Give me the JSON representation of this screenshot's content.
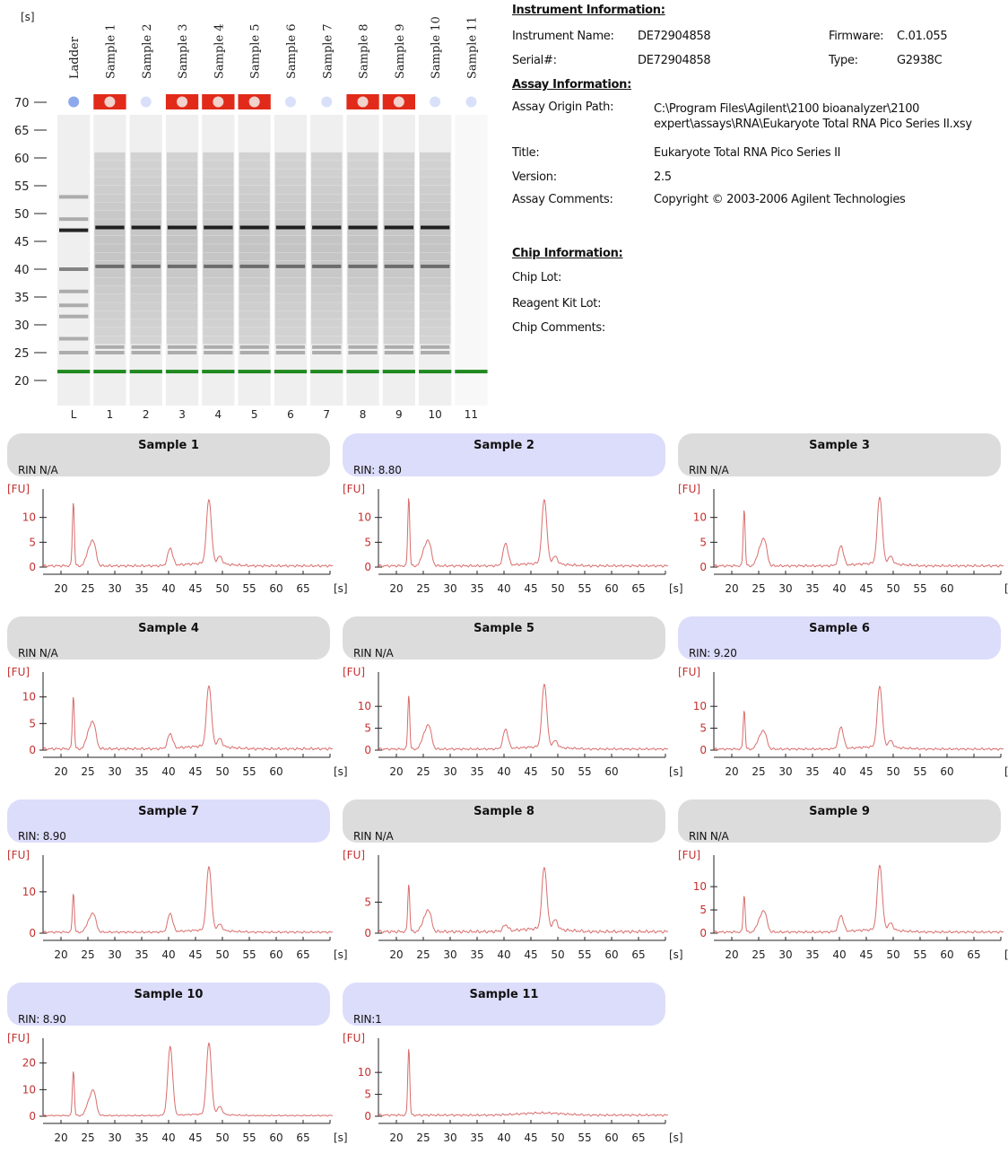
{
  "gel": {
    "axis_unit": "[s]",
    "y_ticks": [
      "70",
      "65",
      "60",
      "55",
      "50",
      "45",
      "40",
      "35",
      "30",
      "25",
      "20"
    ],
    "lane_names": [
      "Ladder",
      "Sample 1",
      "Sample 2",
      "Sample 3",
      "Sample 4",
      "Sample 5",
      "Sample 6",
      "Sample 7",
      "Sample 8",
      "Sample 9",
      "Sample 10",
      "Sample 11"
    ],
    "lane_numbers": [
      "L",
      "1",
      "2",
      "3",
      "4",
      "5",
      "6",
      "7",
      "8",
      "9",
      "10",
      "11"
    ],
    "lane_flags": [
      "blue",
      "red",
      "blue",
      "red",
      "red",
      "red",
      "blue",
      "blue",
      "red",
      "red",
      "blue",
      "blue"
    ],
    "flag_colors": {
      "red": "#e12a1a",
      "blue": "#8ea8ee"
    },
    "ladder_band_positions_s": [
      22,
      25,
      27.5,
      31.5,
      33.5,
      36,
      40,
      47,
      49,
      53
    ],
    "sample_band_positions_s": [
      22,
      25,
      26,
      40.5,
      47.5
    ]
  },
  "info": {
    "instrument_header": "Instrument Information:",
    "instrument_name_label": "Instrument Name:",
    "instrument_name": "DE72904858",
    "serial_label": "Serial#:",
    "serial": "DE72904858",
    "firmware_label": "Firmware:",
    "firmware": "C.01.055",
    "type_label": "Type:",
    "type": "G2938C",
    "assay_header": "Assay Information:",
    "assay_path_label": "Assay Origin Path:",
    "assay_path_line1": "C:\\Program Files\\Agilent\\2100 bioanalyzer\\2100",
    "assay_path_line2": "expert\\assays\\RNA\\Eukaryote Total RNA Pico Series II.xsy",
    "title_label": "Title:",
    "title": "Eukaryote Total RNA Pico Series II",
    "version_label": "Version:",
    "version": "2.5",
    "assay_comments_label": "Assay Comments:",
    "assay_comments": "Copyright © 2003-2006 Agilent Technologies",
    "chip_header": "Chip Information:",
    "chip_lot_label": "Chip Lot:",
    "reagent_kit_lot_label": "Reagent Kit Lot:",
    "chip_comments_label": "Chip Comments:"
  },
  "colors": {
    "trace": "#d96d6d",
    "axis_label": "#c43030",
    "header_gray": "#dcdcdc",
    "header_blue": "#dcdcfb",
    "marker_green": "#1f8a1f"
  },
  "panels": [
    {
      "title": "Sample 1",
      "rin": "RIN N/A",
      "header": "gray",
      "ymax": 15,
      "yticks": [
        "10",
        "5",
        "0"
      ],
      "xticks": [
        "20",
        "25",
        "30",
        "35",
        "40",
        "45",
        "50",
        "55",
        "60",
        "65"
      ],
      "xunit": "[s]",
      "yunit": "[FU]",
      "peaks": [
        [
          22.3,
          13
        ],
        [
          25,
          2.5
        ],
        [
          25.8,
          3
        ],
        [
          26.2,
          2.5
        ],
        [
          40.3,
          3.5
        ],
        [
          47.5,
          13
        ],
        [
          49.5,
          1.5
        ]
      ]
    },
    {
      "title": "Sample 2",
      "rin": "RIN: 8.80",
      "header": "blue",
      "ymax": 15,
      "yticks": [
        "10",
        "5",
        "0"
      ],
      "xticks": [
        "20",
        "25",
        "30",
        "35",
        "40",
        "45",
        "50",
        "55",
        "60",
        "65"
      ],
      "xunit": "[s]",
      "yunit": "[FU]",
      "peaks": [
        [
          22.3,
          14
        ],
        [
          25,
          2.5
        ],
        [
          25.8,
          3
        ],
        [
          26.2,
          2.5
        ],
        [
          40.3,
          4.5
        ],
        [
          47.5,
          13
        ],
        [
          49.5,
          1.5
        ]
      ]
    },
    {
      "title": "Sample 3",
      "rin": "RIN N/A",
      "header": "gray",
      "ymax": 15,
      "yticks": [
        "10",
        "5",
        "0"
      ],
      "xticks": [
        "20",
        "25",
        "30",
        "35",
        "40",
        "45",
        "50",
        "55",
        "60"
      ],
      "xunit": "[s]",
      "yunit": "[FU]",
      "peaks": [
        [
          22.3,
          11.5
        ],
        [
          25,
          2.5
        ],
        [
          25.8,
          3
        ],
        [
          26.2,
          3
        ],
        [
          40.3,
          4
        ],
        [
          47.5,
          13.5
        ],
        [
          49.5,
          1.5
        ]
      ]
    },
    {
      "title": "Sample 4",
      "rin": "RIN N/A",
      "header": "gray",
      "ymax": 14,
      "yticks": [
        "10",
        "5",
        "0"
      ],
      "xticks": [
        "20",
        "25",
        "30",
        "35",
        "40",
        "45",
        "50",
        "55",
        "60"
      ],
      "xunit": "[s]",
      "yunit": "[FU]",
      "peaks": [
        [
          22.3,
          10
        ],
        [
          25,
          2.5
        ],
        [
          25.8,
          3
        ],
        [
          26.2,
          2.5
        ],
        [
          40.3,
          2.8
        ],
        [
          47.5,
          11.5
        ],
        [
          49.5,
          1.5
        ]
      ]
    },
    {
      "title": "Sample 5",
      "rin": "RIN N/A",
      "header": "gray",
      "ymax": 17,
      "yticks": [
        "10",
        "5",
        "0"
      ],
      "xticks": [
        "20",
        "25",
        "30",
        "35",
        "40",
        "45",
        "50",
        "55",
        "60"
      ],
      "xunit": "[s]",
      "yunit": "[FU]",
      "peaks": [
        [
          22.3,
          12.5
        ],
        [
          25,
          2.5
        ],
        [
          25.8,
          3
        ],
        [
          26.2,
          3
        ],
        [
          40.3,
          4.5
        ],
        [
          47.5,
          14.5
        ],
        [
          49.5,
          1.5
        ]
      ]
    },
    {
      "title": "Sample 6",
      "rin": "RIN: 9.20",
      "header": "blue",
      "ymax": 17,
      "yticks": [
        "10",
        "5",
        "0"
      ],
      "xticks": [
        "20",
        "25",
        "30",
        "35",
        "40",
        "45",
        "50",
        "55",
        "60"
      ],
      "xunit": "[s]",
      "yunit": "[FU]",
      "peaks": [
        [
          22.3,
          9
        ],
        [
          25,
          2
        ],
        [
          25.8,
          2.5
        ],
        [
          26.2,
          2
        ],
        [
          40.3,
          5
        ],
        [
          47.5,
          14
        ],
        [
          49.5,
          1.5
        ]
      ]
    },
    {
      "title": "Sample 7",
      "rin": "RIN: 8.90",
      "header": "blue",
      "ymax": 18,
      "yticks": [
        "10",
        "0"
      ],
      "xticks": [
        "20",
        "25",
        "30",
        "35",
        "40",
        "45",
        "50",
        "55",
        "60",
        "65"
      ],
      "xunit": "[s]",
      "yunit": "[FU]",
      "peaks": [
        [
          22.3,
          9.5
        ],
        [
          25,
          2
        ],
        [
          25.8,
          2.5
        ],
        [
          26.2,
          2.5
        ],
        [
          40.3,
          4.5
        ],
        [
          47.5,
          15.5
        ],
        [
          49.5,
          1.5
        ]
      ]
    },
    {
      "title": "Sample 8",
      "rin": "RIN N/A",
      "header": "gray",
      "ymax": 12,
      "yticks": [
        "5",
        "0"
      ],
      "xticks": [
        "20",
        "25",
        "30",
        "35",
        "40",
        "45",
        "50",
        "55",
        "60",
        "65"
      ],
      "xunit": "[s]",
      "yunit": "[FU]",
      "peaks": [
        [
          22.3,
          7.8
        ],
        [
          25,
          1.5
        ],
        [
          25.8,
          2
        ],
        [
          26.2,
          1.8
        ],
        [
          40.3,
          1
        ],
        [
          47.5,
          10
        ],
        [
          49.5,
          1.5
        ]
      ]
    },
    {
      "title": "Sample 9",
      "rin": "RIN N/A",
      "header": "gray",
      "ymax": 16,
      "yticks": [
        "10",
        "5",
        "0"
      ],
      "xticks": [
        "20",
        "25",
        "30",
        "35",
        "40",
        "45",
        "50",
        "55",
        "60",
        "65"
      ],
      "xunit": "[s]",
      "yunit": "[FU]",
      "peaks": [
        [
          22.3,
          8
        ],
        [
          25,
          2
        ],
        [
          25.8,
          2.5
        ],
        [
          26.2,
          2.5
        ],
        [
          40.3,
          3.5
        ],
        [
          47.5,
          14
        ],
        [
          49.5,
          1.5
        ]
      ]
    },
    {
      "title": "Sample 10",
      "rin": "RIN: 8.90",
      "header": "blue",
      "ymax": 28,
      "yticks": [
        "20",
        "10",
        "0"
      ],
      "xticks": [
        "20",
        "25",
        "30",
        "35",
        "40",
        "45",
        "50",
        "55",
        "60",
        "65"
      ],
      "xunit": "[s]",
      "yunit": "[FU]",
      "peaks": [
        [
          22.3,
          17
        ],
        [
          25,
          4
        ],
        [
          25.8,
          5
        ],
        [
          26.2,
          5.5
        ],
        [
          40.3,
          26
        ],
        [
          47.5,
          27
        ],
        [
          49.5,
          3
        ]
      ]
    },
    {
      "title": "Sample 11",
      "rin": "RIN:1",
      "header": "blue",
      "ymax": 17,
      "yticks": [
        "10",
        "5",
        "0"
      ],
      "xticks": [
        "20",
        "25",
        "30",
        "35",
        "40",
        "45",
        "50",
        "55",
        "60",
        "65"
      ],
      "xunit": "[s]",
      "yunit": "[FU]",
      "peaks": [
        [
          22.3,
          15.5
        ]
      ]
    }
  ]
}
